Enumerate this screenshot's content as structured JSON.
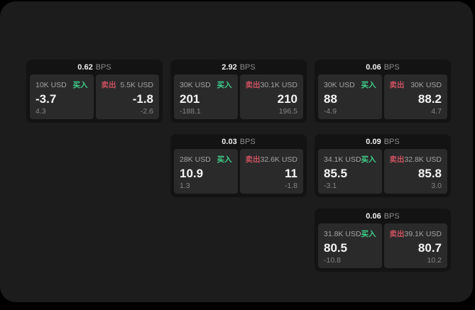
{
  "labels": {
    "buy": "买入",
    "sell": "卖出",
    "bps_unit": "BPS"
  },
  "colors": {
    "page_bg": "#1c1c1d",
    "card_bg": "#131314",
    "panel_bg": "#2a2a2b",
    "buy_green": "#3ecf8b",
    "sell_red": "#cc5160",
    "price_text": "#f4f4f4",
    "muted_text": "#a3a3a3"
  },
  "cards": [
    {
      "bps": "0.62",
      "buy": {
        "amount": "10K USD",
        "price": "-3.7",
        "change": "4.3"
      },
      "sell": {
        "amount": "5.5K USD",
        "price": "-1.8",
        "change": "-2.6"
      }
    },
    {
      "bps": "2.92",
      "buy": {
        "amount": "30K USD",
        "price": "201",
        "change": "-188.1"
      },
      "sell": {
        "amount": "30.1K USD",
        "price": "210",
        "change": "196.5"
      }
    },
    {
      "bps": "0.06",
      "buy": {
        "amount": "30K USD",
        "price": "88",
        "change": "-4.9"
      },
      "sell": {
        "amount": "30K USD",
        "price": "88.2",
        "change": "4.7"
      }
    },
    {
      "bps": "0.03",
      "buy": {
        "amount": "28K USD",
        "price": "10.9",
        "change": "1.3"
      },
      "sell": {
        "amount": "32.6K USD",
        "price": "11",
        "change": "-1.8"
      }
    },
    {
      "bps": "0.09",
      "buy": {
        "amount": "34.1K USD",
        "price": "85.5",
        "change": "-3.1"
      },
      "sell": {
        "amount": "32.8K USD",
        "price": "85.8",
        "change": "3.0"
      }
    },
    {
      "bps": "0.06",
      "buy": {
        "amount": "31.8K USD",
        "price": "80.5",
        "change": "-10.8"
      },
      "sell": {
        "amount": "39.1K USD",
        "price": "80.7",
        "change": "10.2"
      }
    }
  ]
}
